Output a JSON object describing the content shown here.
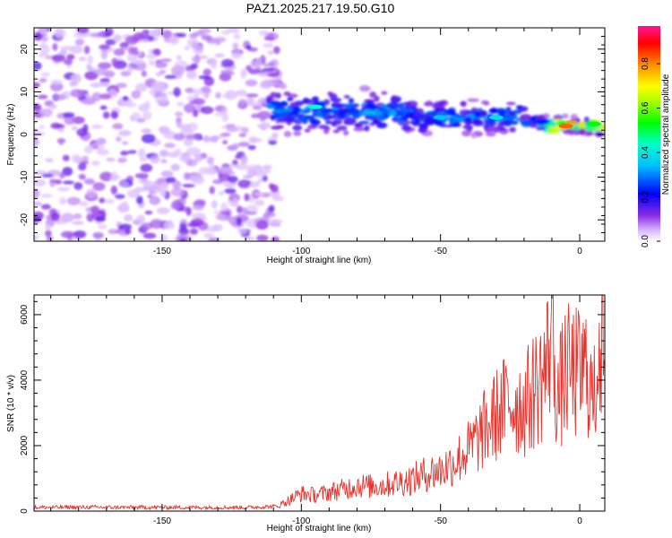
{
  "title": "PAZ1.2025.217.19.50.G10",
  "chart_data": [
    {
      "type": "heatmap",
      "xlabel": "Height of straight line (km)",
      "ylabel": "Frequency (Hz)",
      "xlim": [
        -196,
        9
      ],
      "ylim": [
        -25,
        25
      ],
      "xticks": [
        -150,
        -100,
        -50,
        0
      ],
      "yticks": [
        -20,
        -10,
        0,
        10,
        20
      ],
      "colorbar": {
        "label": "Normalized spectral amplitude",
        "range": [
          0.0,
          0.97
        ],
        "ticks": [
          "0.0",
          "0.2",
          "0.4",
          "0.6",
          "0.8"
        ],
        "colormap": "rainbow (white-violet-blue-cyan-green-yellow-red-magenta)"
      },
      "description_points": [
        {
          "x": -196,
          "y": 0,
          "note": "diffuse low-amplitude noise over full band"
        },
        {
          "x": -110,
          "y": 6,
          "note": "signal band emerges"
        },
        {
          "x": -95,
          "y": 6.5,
          "v": 0.45
        },
        {
          "x": -50,
          "y": 4,
          "v": 0.35
        },
        {
          "x": -30,
          "y": 4,
          "v": 0.4
        },
        {
          "x": -5,
          "y": 2,
          "v": 0.85
        },
        {
          "x": 5,
          "y": 2.5,
          "v": 0.55
        }
      ]
    },
    {
      "type": "line",
      "xlabel": "Height of straight line (km)",
      "ylabel": "SNR (10 * v/v)",
      "xlim": [
        -196,
        9
      ],
      "ylim": [
        0,
        6600
      ],
      "xticks": [
        -150,
        -100,
        -50,
        0
      ],
      "yticks": [
        0,
        2000,
        4000,
        6000
      ],
      "series": [
        {
          "color": "#e8332d",
          "x": [
            -196,
            -180,
            -160,
            -140,
            -120,
            -108,
            -103,
            -100,
            -95,
            -90,
            -85,
            -80,
            -75,
            -70,
            -65,
            -60,
            -55,
            -50,
            -45,
            -40,
            -35,
            -30,
            -25,
            -20,
            -15,
            -12,
            -10,
            -8,
            -5,
            0,
            3,
            5,
            7,
            9
          ],
          "y": [
            150,
            160,
            150,
            150,
            150,
            200,
            450,
            600,
            550,
            650,
            750,
            900,
            850,
            900,
            1000,
            1100,
            1300,
            1400,
            1700,
            2100,
            2700,
            3300,
            3800,
            3600,
            4400,
            4900,
            6600,
            3800,
            4800,
            4700,
            4900,
            3500,
            6300,
            5200
          ]
        }
      ]
    }
  ]
}
